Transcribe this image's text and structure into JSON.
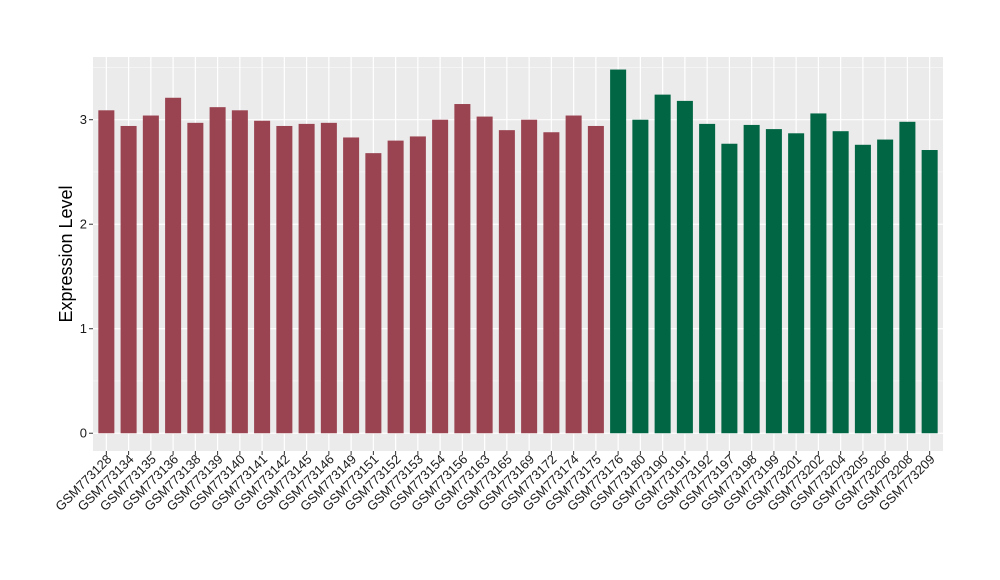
{
  "chart_data": {
    "type": "bar",
    "title": "",
    "xlabel": "",
    "ylabel": "Expression Level",
    "ylim": [
      -0.17,
      3.6
    ],
    "yticks": [
      0,
      1,
      2,
      3
    ],
    "grid": true,
    "legend": "none",
    "background": "#EBEBEB",
    "gridline_color": "#FFFFFF",
    "group_colors": {
      "group1": "#9B4451",
      "group2": "#006644"
    },
    "categories": [
      "GSM773128",
      "GSM773134",
      "GSM773135",
      "GSM773136",
      "GSM773138",
      "GSM773139",
      "GSM773140",
      "GSM773141",
      "GSM773142",
      "GSM773145",
      "GSM773146",
      "GSM773149",
      "GSM773151",
      "GSM773152",
      "GSM773153",
      "GSM773154",
      "GSM773156",
      "GSM773163",
      "GSM773165",
      "GSM773169",
      "GSM773172",
      "GSM773174",
      "GSM773175",
      "GSM773176",
      "GSM773180",
      "GSM773190",
      "GSM773191",
      "GSM773192",
      "GSM773197",
      "GSM773198",
      "GSM773199",
      "GSM773201",
      "GSM773202",
      "GSM773204",
      "GSM773205",
      "GSM773206",
      "GSM773208",
      "GSM773209"
    ],
    "values": [
      3.09,
      2.94,
      3.04,
      3.21,
      2.97,
      3.12,
      3.09,
      2.99,
      2.94,
      2.96,
      2.97,
      2.83,
      2.68,
      2.8,
      2.84,
      3.0,
      3.15,
      3.03,
      2.9,
      3.0,
      2.88,
      3.04,
      2.94,
      3.48,
      3.0,
      3.24,
      3.18,
      2.96,
      2.77,
      2.95,
      2.91,
      2.87,
      3.06,
      2.89,
      2.76,
      2.81,
      2.98,
      2.71
    ],
    "groups": [
      "group1",
      "group1",
      "group1",
      "group1",
      "group1",
      "group1",
      "group1",
      "group1",
      "group1",
      "group1",
      "group1",
      "group1",
      "group1",
      "group1",
      "group1",
      "group1",
      "group1",
      "group1",
      "group1",
      "group1",
      "group1",
      "group1",
      "group1",
      "group2",
      "group2",
      "group2",
      "group2",
      "group2",
      "group2",
      "group2",
      "group2",
      "group2",
      "group2",
      "group2",
      "group2",
      "group2",
      "group2",
      "group2"
    ]
  }
}
